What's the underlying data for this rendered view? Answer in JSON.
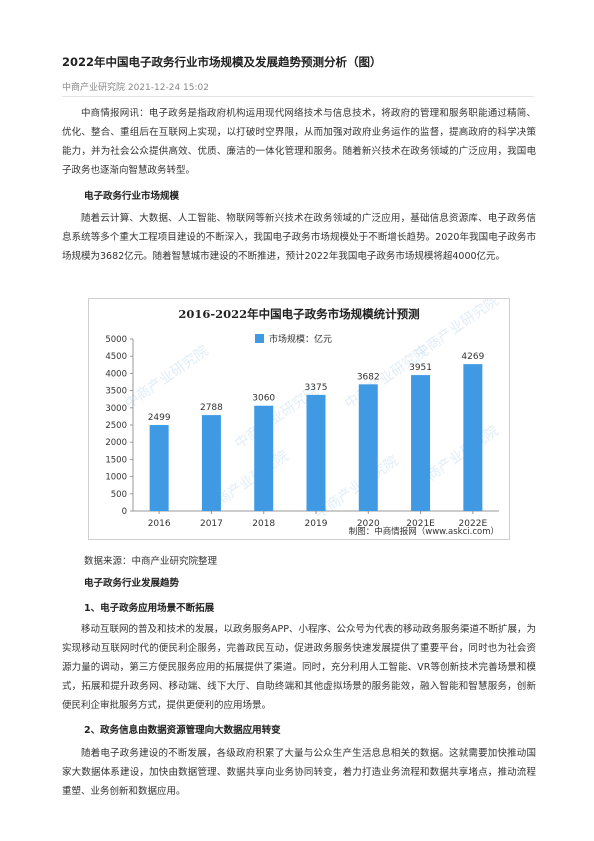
{
  "article": {
    "title": "2022年中国电子政务行业市场规模及发展趋势预测分析（图）",
    "meta": "中商产业研究院 2021-12-24 15:02",
    "intro": "中商情报网讯：电子政务是指政府机构运用现代网络技术与信息技术，将政府的管理和服务职能通过精简、优化、整合、重组后在互联网上实现，以打破时空界限，从而加强对政府业务运作的监督，提高政府的科学决策能力，并为社会公众提供高效、优质、廉洁的一体化管理和服务。随着新兴技术在政务领域的广泛应用，我国电子政务也逐渐向智慧政务转型。",
    "section1_heading": "电子政务行业市场规模",
    "section1_para": "随着云计算、大数据、人工智能、物联网等新兴技术在政务领域的广泛应用，基础信息资源库、电子政务信息系统等多个重大工程项目建设的不断深入，我国电子政务市场规模处于不断增长趋势。2020年我国电子政务市场规模为3682亿元。随着智慧城市建设的不断推进，预计2022年我国电子政务市场规模将超4000亿元。",
    "data_source": "数据来源：中商产业研究院整理",
    "section2_heading": "电子政务行业发展趋势",
    "trend1_heading": "1、电子政务应用场景不断拓展",
    "trend1_para": "移动互联网的普及和技术的发展，以政务服务APP、小程序、公众号为代表的移动政务服务渠道不断扩展，为实现移动互联网时代的便民利企服务，完善政民互动，促进政务服务快速发展提供了重要平台，同时也为社会资源力量的调动，第三方便民服务应用的拓展提供了渠道。同时，充分利用人工智能、VR等创新技术完善场景和模式，拓展和提升政务网、移动端、线下大厅、自助终端和其他虚拟场景的服务能效，融入智能和智慧服务，创新便民利企审批服务方式，提供更便利的应用场景。",
    "trend2_heading": "2、政务信息由数据资源管理向大数据应用转变",
    "trend2_para": "随着电子政务建设的不断发展，各级政府积累了大量与公众生产生活息息相关的数据。这就需要加快推动国家大数据体系建设，加快由数据管理、数据共享向业务协同转变，着力打造业务流程和数据共享堵点，推动流程重塑、业务创新和数据应用。"
  },
  "chart_data": {
    "type": "bar",
    "title": "2016-2022年中国电子政务市场规模统计预测",
    "categories": [
      "2016",
      "2017",
      "2018",
      "2019",
      "2020",
      "2021E",
      "2022E"
    ],
    "series": [
      {
        "name": "市场规模：亿元",
        "values": [
          2499,
          2788,
          3060,
          3375,
          3682,
          3951,
          4269
        ]
      }
    ],
    "y_ticks": [
      "0",
      "500",
      "1000",
      "1500",
      "2000",
      "2500",
      "3000",
      "3500",
      "4000",
      "4500",
      "5000"
    ],
    "ylim": [
      0,
      5000
    ],
    "xlabel": "",
    "ylabel": "",
    "grid": false,
    "legend": "top-center",
    "credit": "制图：中商情报网（www.askci.com）",
    "watermark": "中商产业研究院",
    "colors": {
      "bar": "#3f9ae3",
      "axis": "#999999",
      "text": "#333333"
    }
  }
}
